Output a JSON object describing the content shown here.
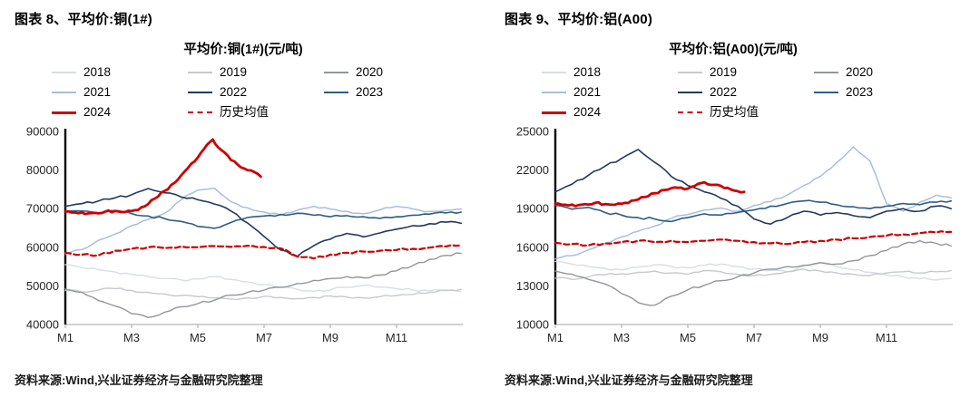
{
  "panels": [
    {
      "header": "图表 8、平均价:铜(1#)",
      "source": "资料来源:Wind,兴业证券经济与金融研究院整理"
    },
    {
      "header": "图表 9、平均价:铝(A00)",
      "source": "资料来源:Wind,兴业证券经济与金融研究院整理"
    }
  ],
  "chart_data": [
    {
      "type": "line",
      "title": "平均价:铜(1#)(元/吨)",
      "ylabel": "元/吨",
      "ylim": [
        40000,
        90000
      ],
      "yticks": [
        40000,
        50000,
        60000,
        70000,
        80000,
        90000
      ],
      "xlim": [
        1,
        13
      ],
      "xticks": [
        {
          "x": 1,
          "label": "M1"
        },
        {
          "x": 3,
          "label": "M3"
        },
        {
          "x": 5,
          "label": "M5"
        },
        {
          "x": 7,
          "label": "M7"
        },
        {
          "x": 9,
          "label": "M9"
        },
        {
          "x": 11,
          "label": "M11"
        }
      ],
      "grid": false,
      "legend_position": "top",
      "series": [
        {
          "name": "2018",
          "color": "#d8dde6",
          "width": 1.4,
          "dash": null,
          "x": [
            1,
            1.5,
            2,
            2.5,
            3,
            3.5,
            4,
            4.5,
            5,
            5.5,
            6,
            6.5,
            7,
            7.5,
            8,
            8.5,
            9,
            9.5,
            10,
            10.5,
            11,
            11.5,
            12,
            12.5,
            12.95
          ],
          "y": [
            55500,
            54800,
            54200,
            53600,
            53000,
            52400,
            51900,
            51500,
            51800,
            52400,
            51700,
            51000,
            50300,
            49700,
            49100,
            48600,
            49000,
            49600,
            50100,
            49700,
            49300,
            48900,
            48700,
            48900,
            48600
          ]
        },
        {
          "name": "2019",
          "color": "#c6c9cc",
          "width": 1.4,
          "dash": null,
          "x": [
            1,
            1.5,
            2,
            2.5,
            3,
            3.5,
            4,
            4.5,
            5,
            5.5,
            6,
            6.5,
            7,
            7.5,
            8,
            8.5,
            9,
            9.5,
            10,
            10.5,
            11,
            11.5,
            12,
            12.5,
            12.95
          ],
          "y": [
            48800,
            48400,
            48900,
            49300,
            48800,
            48300,
            47900,
            47500,
            47200,
            46900,
            46600,
            46900,
            47300,
            47000,
            46700,
            47000,
            47400,
            47100,
            46900,
            47200,
            47500,
            47800,
            48300,
            48800,
            49100
          ]
        },
        {
          "name": "2020",
          "color": "#929699",
          "width": 1.4,
          "dash": null,
          "x": [
            1,
            1.5,
            2,
            2.5,
            3,
            3.5,
            4,
            4.5,
            5,
            5.5,
            6,
            6.5,
            7,
            7.5,
            8,
            8.5,
            9,
            9.5,
            10,
            10.5,
            11,
            11.5,
            12,
            12.5,
            12.95
          ],
          "y": [
            49200,
            48300,
            46200,
            44800,
            42800,
            41800,
            43200,
            44600,
            45400,
            46300,
            47600,
            48300,
            48900,
            49600,
            50600,
            51400,
            51900,
            52400,
            52100,
            52800,
            53900,
            55300,
            56900,
            57900,
            58400
          ]
        },
        {
          "name": "2021",
          "color": "#a9bedc",
          "width": 1.5,
          "dash": null,
          "x": [
            1,
            1.5,
            2,
            2.5,
            3,
            3.5,
            4,
            4.5,
            5,
            5.5,
            6,
            6.5,
            7,
            7.5,
            8,
            8.5,
            9,
            9.5,
            10,
            10.5,
            11,
            11.5,
            12,
            12.5,
            12.95
          ],
          "y": [
            58300,
            59400,
            61800,
            63400,
            65600,
            67200,
            68800,
            72300,
            74800,
            75300,
            71800,
            70200,
            69100,
            68300,
            69600,
            70600,
            69900,
            69300,
            68700,
            69700,
            70600,
            69900,
            69300,
            69600,
            69900
          ]
        },
        {
          "name": "2022",
          "color": "#1f3a5f",
          "width": 1.6,
          "dash": null,
          "x": [
            1,
            1.5,
            2,
            2.5,
            3,
            3.5,
            4,
            4.5,
            5,
            5.5,
            6,
            6.5,
            7,
            7.5,
            8,
            8.5,
            9,
            9.5,
            10,
            10.5,
            11,
            11.5,
            12,
            12.5,
            12.95
          ],
          "y": [
            70600,
            71300,
            72000,
            72800,
            73600,
            75200,
            74100,
            73000,
            72300,
            71200,
            69400,
            66300,
            62800,
            59300,
            57600,
            60400,
            62100,
            63600,
            62700,
            63700,
            64700,
            65600,
            66100,
            66500,
            66200
          ]
        },
        {
          "name": "2023",
          "color": "#2f5b87",
          "width": 1.6,
          "dash": null,
          "x": [
            1,
            1.5,
            2,
            2.5,
            3,
            3.5,
            4,
            4.5,
            5,
            5.5,
            6,
            6.5,
            7,
            7.5,
            8,
            8.5,
            9,
            9.5,
            10,
            10.5,
            11,
            11.5,
            12,
            12.5,
            12.95
          ],
          "y": [
            69100,
            69400,
            68900,
            69500,
            68700,
            68100,
            67400,
            66700,
            65400,
            64900,
            66400,
            67700,
            68100,
            68500,
            68800,
            68300,
            67900,
            68200,
            67900,
            67500,
            67900,
            68300,
            68600,
            68900,
            69100
          ]
        },
        {
          "name": "2024",
          "color": "#cc0000",
          "width": 2.8,
          "dash": null,
          "x": [
            1,
            1.3,
            1.6,
            1.9,
            2.2,
            2.5,
            2.8,
            3.1,
            3.4,
            3.7,
            4,
            4.3,
            4.6,
            4.9,
            5.2,
            5.45,
            5.7,
            6,
            6.3,
            6.6,
            6.9
          ],
          "y": [
            69300,
            69000,
            68600,
            68900,
            69200,
            69400,
            69100,
            69600,
            70600,
            72600,
            74600,
            76700,
            79600,
            82200,
            85600,
            87900,
            85200,
            82600,
            80700,
            79900,
            78300
          ]
        },
        {
          "name": "历史均值",
          "color": "#cc0000",
          "width": 2.2,
          "dash": "6,3.5",
          "x": [
            1,
            1.5,
            2,
            2.5,
            3,
            3.5,
            4,
            4.5,
            5,
            5.5,
            6,
            6.5,
            7,
            7.5,
            8,
            8.5,
            9,
            9.5,
            10,
            10.5,
            11,
            11.5,
            12,
            12.5,
            12.95
          ],
          "y": [
            58600,
            58100,
            57900,
            59100,
            59600,
            60000,
            59800,
            60200,
            60000,
            60300,
            60100,
            60400,
            60100,
            59700,
            57600,
            57100,
            58100,
            58600,
            58900,
            59100,
            59300,
            59600,
            59900,
            60200,
            60500
          ]
        }
      ]
    },
    {
      "type": "line",
      "title": "平均价:铝(A00)(元/吨)",
      "ylabel": "元/吨",
      "ylim": [
        10000,
        25000
      ],
      "yticks": [
        10000,
        13000,
        16000,
        19000,
        22000,
        25000
      ],
      "xlim": [
        1,
        13
      ],
      "xticks": [
        {
          "x": 1,
          "label": "M1"
        },
        {
          "x": 3,
          "label": "M3"
        },
        {
          "x": 5,
          "label": "M5"
        },
        {
          "x": 7,
          "label": "M7"
        },
        {
          "x": 9,
          "label": "M9"
        },
        {
          "x": 11,
          "label": "M11"
        }
      ],
      "grid": false,
      "legend_position": "top",
      "series": [
        {
          "name": "2018",
          "color": "#d8dde6",
          "width": 1.4,
          "dash": null,
          "x": [
            1,
            1.5,
            2,
            2.5,
            3,
            3.5,
            4,
            4.5,
            5,
            5.5,
            6,
            6.5,
            7,
            7.5,
            8,
            8.5,
            9,
            9.5,
            10,
            10.5,
            11,
            11.5,
            12,
            12.5,
            12.95
          ],
          "y": [
            14900,
            14700,
            14500,
            14350,
            14250,
            14450,
            14650,
            14500,
            14400,
            14600,
            14700,
            14500,
            14300,
            14200,
            14100,
            14550,
            14800,
            14500,
            14250,
            14050,
            13850,
            13700,
            13550,
            13450,
            13600
          ]
        },
        {
          "name": "2019",
          "color": "#c6c9cc",
          "width": 1.4,
          "dash": null,
          "x": [
            1,
            1.5,
            2,
            2.5,
            3,
            3.5,
            4,
            4.5,
            5,
            5.5,
            6,
            6.5,
            7,
            7.5,
            8,
            8.5,
            9,
            9.5,
            10,
            10.5,
            11,
            11.5,
            12,
            12.5,
            12.95
          ],
          "y": [
            13600,
            13500,
            13700,
            13850,
            13950,
            14050,
            14150,
            14000,
            13900,
            14200,
            14100,
            13900,
            13800,
            13900,
            14100,
            14300,
            14150,
            14000,
            13900,
            13800,
            14000,
            14100,
            14000,
            14100,
            14200
          ]
        },
        {
          "name": "2020",
          "color": "#929699",
          "width": 1.4,
          "dash": null,
          "x": [
            1,
            1.5,
            2,
            2.5,
            3,
            3.5,
            4,
            4.5,
            5,
            5.5,
            6,
            6.5,
            7,
            7.5,
            8,
            8.5,
            9,
            9.5,
            10,
            10.5,
            11,
            11.5,
            12,
            12.5,
            12.95
          ],
          "y": [
            14150,
            13900,
            13500,
            13150,
            12400,
            11700,
            11500,
            12200,
            12700,
            13050,
            13400,
            13700,
            14000,
            14300,
            14500,
            14600,
            14800,
            14700,
            14950,
            15350,
            15750,
            16250,
            16500,
            16300,
            16100
          ]
        },
        {
          "name": "2021",
          "color": "#a9bedc",
          "width": 1.5,
          "dash": null,
          "x": [
            1,
            1.5,
            2,
            2.5,
            3,
            3.5,
            4,
            4.5,
            5,
            5.5,
            6,
            6.5,
            7,
            7.5,
            8,
            8.5,
            9,
            9.5,
            10,
            10.5,
            11,
            11.5,
            12,
            12.5,
            12.95
          ],
          "y": [
            15100,
            15350,
            15800,
            16300,
            16800,
            17250,
            17650,
            18250,
            18550,
            18900,
            19050,
            18800,
            19250,
            19550,
            20050,
            20800,
            21500,
            22600,
            23800,
            22700,
            19400,
            18800,
            19500,
            20050,
            19850
          ]
        },
        {
          "name": "2022",
          "color": "#1f3a5f",
          "width": 1.6,
          "dash": null,
          "x": [
            1,
            1.5,
            2,
            2.5,
            3,
            3.5,
            4,
            4.5,
            5,
            5.5,
            6,
            6.5,
            7,
            7.5,
            8,
            8.5,
            9,
            9.5,
            10,
            10.5,
            11,
            11.5,
            12,
            12.5,
            12.95
          ],
          "y": [
            20300,
            20900,
            21600,
            22300,
            22900,
            23600,
            22600,
            21500,
            20800,
            20300,
            19800,
            19200,
            18200,
            17800,
            18300,
            18800,
            18500,
            18700,
            18450,
            18300,
            18800,
            19000,
            18800,
            19200,
            19000
          ]
        },
        {
          "name": "2023",
          "color": "#2f5b87",
          "width": 1.6,
          "dash": null,
          "x": [
            1,
            1.5,
            2,
            2.5,
            3,
            3.5,
            4,
            4.5,
            5,
            5.5,
            6,
            6.5,
            7,
            7.5,
            8,
            8.5,
            9,
            9.5,
            10,
            10.5,
            11,
            11.5,
            12,
            12.5,
            12.95
          ],
          "y": [
            19250,
            18950,
            19100,
            18700,
            18500,
            18300,
            18200,
            18000,
            18300,
            18600,
            18500,
            18700,
            18900,
            19200,
            19400,
            19600,
            19500,
            19300,
            19150,
            19000,
            19200,
            19400,
            19300,
            19500,
            19600
          ]
        },
        {
          "name": "2024",
          "color": "#cc0000",
          "width": 2.8,
          "dash": null,
          "x": [
            1,
            1.3,
            1.6,
            1.9,
            2.2,
            2.5,
            2.8,
            3.1,
            3.4,
            3.7,
            4,
            4.3,
            4.6,
            4.9,
            5.2,
            5.5,
            5.8,
            6.1,
            6.4,
            6.7
          ],
          "y": [
            19400,
            19300,
            19200,
            19350,
            19450,
            19350,
            19300,
            19450,
            19650,
            19900,
            20200,
            20450,
            20650,
            20500,
            20750,
            21050,
            20850,
            20600,
            20400,
            20300
          ]
        },
        {
          "name": "历史均值",
          "color": "#cc0000",
          "width": 2.2,
          "dash": "6,3.5",
          "x": [
            1,
            1.5,
            2,
            2.5,
            3,
            3.5,
            4,
            4.5,
            5,
            5.5,
            6,
            6.5,
            7,
            7.5,
            8,
            8.5,
            9,
            9.5,
            10,
            10.5,
            11,
            11.5,
            12,
            12.5,
            12.95
          ],
          "y": [
            16350,
            16250,
            16150,
            16300,
            16400,
            16500,
            16400,
            16500,
            16400,
            16500,
            16600,
            16500,
            16400,
            16300,
            16250,
            16400,
            16500,
            16600,
            16700,
            16800,
            16900,
            17000,
            17100,
            17150,
            17200
          ]
        }
      ]
    }
  ]
}
